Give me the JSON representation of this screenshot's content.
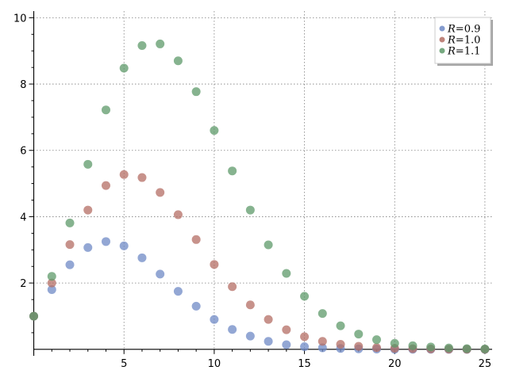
{
  "chart_data": {
    "type": "scatter",
    "title": "",
    "xlabel": "",
    "ylabel": "",
    "xlim": [
      -0.2,
      25.4
    ],
    "ylim": [
      -0.1,
      10.2
    ],
    "x_ticks": [
      5,
      10,
      15,
      20,
      25
    ],
    "y_ticks": [
      2,
      4,
      6,
      8,
      10
    ],
    "x_tick_labels": [
      "5",
      "10",
      "15",
      "20",
      "25"
    ],
    "y_tick_labels": [
      "2",
      "4",
      "6",
      "8",
      "10"
    ],
    "grid": true,
    "legend_position": "top-right",
    "x": [
      0,
      1,
      2,
      3,
      4,
      5,
      6,
      7,
      8,
      9,
      10,
      11,
      12,
      13,
      14,
      15,
      16,
      17,
      18,
      19,
      20,
      21,
      22,
      23,
      24,
      25
    ],
    "series": [
      {
        "name": "R = 0.9",
        "label_lhs": "R",
        "label_rhs": "0.9",
        "color": "#6f8ac6",
        "values": [
          1.0,
          1.8,
          2.55,
          3.07,
          3.25,
          3.12,
          2.76,
          2.27,
          1.75,
          1.3,
          0.9,
          0.6,
          0.4,
          0.24,
          0.14,
          0.08,
          0.045,
          0.025,
          0.013,
          0.007,
          0.003,
          0.002,
          0.001,
          0,
          0,
          0
        ]
      },
      {
        "name": "R = 1.0",
        "label_lhs": "R",
        "label_rhs": "1.0",
        "color": "#b46e64",
        "values": [
          1.0,
          2.0,
          3.16,
          4.2,
          4.94,
          5.27,
          5.18,
          4.73,
          4.06,
          3.31,
          2.56,
          1.89,
          1.34,
          0.9,
          0.59,
          0.38,
          0.24,
          0.15,
          0.09,
          0.05,
          0.03,
          0.02,
          0.01,
          0.005,
          0.002,
          0.001
        ]
      },
      {
        "name": "R = 1.1",
        "label_lhs": "R",
        "label_rhs": "1.1",
        "color": "#5e9a6a",
        "values": [
          1.0,
          2.2,
          3.81,
          5.58,
          7.22,
          8.48,
          9.16,
          9.21,
          8.7,
          7.77,
          6.6,
          5.38,
          4.2,
          3.15,
          2.29,
          1.6,
          1.08,
          0.71,
          0.46,
          0.29,
          0.18,
          0.11,
          0.07,
          0.04,
          0.02,
          0.01
        ]
      }
    ]
  }
}
